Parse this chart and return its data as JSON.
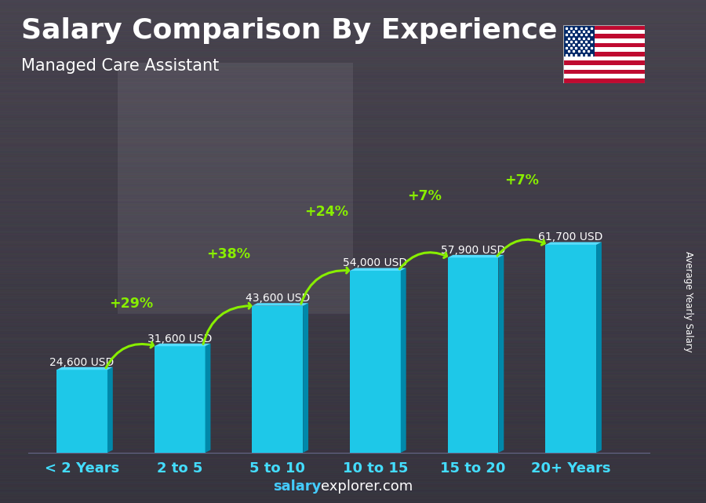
{
  "title": "Salary Comparison By Experience",
  "subtitle": "Managed Care Assistant",
  "ylabel": "Average Yearly Salary",
  "categories": [
    "< 2 Years",
    "2 to 5",
    "5 to 10",
    "10 to 15",
    "15 to 20",
    "20+ Years"
  ],
  "values": [
    24600,
    31600,
    43600,
    54000,
    57900,
    61700
  ],
  "value_labels": [
    "24,600 USD",
    "31,600 USD",
    "43,600 USD",
    "54,000 USD",
    "57,900 USD",
    "61,700 USD"
  ],
  "pct_changes": [
    "+29%",
    "+38%",
    "+24%",
    "+7%",
    "+7%"
  ],
  "bar_face_color": "#1EC8E8",
  "bar_dark_color": "#0088AA",
  "bar_top_color": "#55DDFF",
  "bg_color": "#4a4a4a",
  "title_color": "#ffffff",
  "subtitle_color": "#ffffff",
  "label_color": "#ffffff",
  "pct_color": "#88ee00",
  "tick_color": "#44DDFF",
  "footer_salary_color": "#44CCFF",
  "footer_rest_color": "#ffffff",
  "ylabel_color": "#ffffff",
  "figsize": [
    9.0,
    6.41
  ],
  "dpi": 100
}
